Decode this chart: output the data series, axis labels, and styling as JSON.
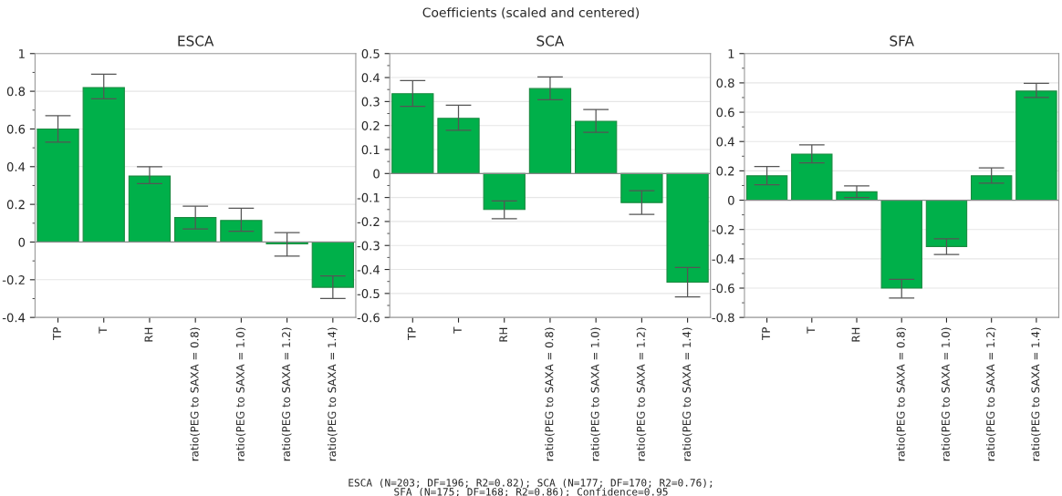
{
  "chart_data": [
    {
      "type": "bar",
      "title": "ESCA",
      "annotations": [
        "Coefficients (scaled and centered)"
      ],
      "categories": [
        "TP",
        "T",
        "RH",
        "ratio(PEG to SAXA = 0.8)",
        "ratio(PEG to SAXA = 1.0)",
        "ratio(PEG to SAXA = 1.2)",
        "ratio(PEG to SAXA = 1.4)"
      ],
      "values": [
        0.6,
        0.82,
        0.35,
        0.13,
        0.115,
        -0.01,
        -0.24
      ],
      "errors": [
        [
          0.53,
          0.67
        ],
        [
          0.76,
          0.89
        ],
        [
          0.31,
          0.4
        ],
        [
          0.07,
          0.19
        ],
        [
          0.057,
          0.18
        ],
        [
          -0.075,
          0.05
        ],
        [
          -0.3,
          -0.18
        ]
      ],
      "color": "#00b04a",
      "ylim": [
        -0.4,
        1
      ],
      "yticks": [
        -0.4,
        -0.2,
        0,
        0.2,
        0.4,
        0.6,
        0.8,
        1
      ],
      "grid": "y"
    },
    {
      "type": "bar",
      "title": "SCA",
      "categories": [
        "TP",
        "T",
        "RH",
        "ratio(PEG to SAXA = 0.8)",
        "ratio(PEG to SAXA = 1.0)",
        "ratio(PEG to SAXA = 1.2)",
        "ratio(PEG to SAXA = 1.4)"
      ],
      "values": [
        0.333,
        0.23,
        -0.15,
        0.354,
        0.218,
        -0.121,
        -0.453
      ],
      "errors": [
        [
          0.28,
          0.387
        ],
        [
          0.18,
          0.285
        ],
        [
          -0.188,
          -0.114
        ],
        [
          0.308,
          0.403
        ],
        [
          0.172,
          0.267
        ],
        [
          -0.17,
          -0.072
        ],
        [
          -0.514,
          -0.392
        ]
      ],
      "color": "#00b04a",
      "ylim": [
        -0.6,
        0.5
      ],
      "yticks": [
        -0.6,
        -0.5,
        -0.4,
        -0.3,
        -0.2,
        -0.1,
        0,
        0.1,
        0.2,
        0.3,
        0.4,
        0.5
      ],
      "grid": "y"
    },
    {
      "type": "bar",
      "title": "SFA",
      "annotations": [
        "ESCA (N=203; DF=196; R2=0.82); SCA (N=177; DF=170; R2=0.76);\nSFA (N=175; DF=168; R2=0.86); Confidence=0.95"
      ],
      "categories": [
        "TP",
        "T",
        "RH",
        "ratio(PEG to SAXA = 0.8)",
        "ratio(PEG to SAXA = 1.0)",
        "ratio(PEG to SAXA = 1.2)",
        "ratio(PEG to SAXA = 1.4)"
      ],
      "values": [
        0.166,
        0.314,
        0.057,
        -0.6,
        -0.316,
        0.166,
        0.744
      ],
      "errors": [
        [
          0.105,
          0.23
        ],
        [
          0.254,
          0.377
        ],
        [
          0.018,
          0.097
        ],
        [
          -0.667,
          -0.54
        ],
        [
          -0.37,
          -0.264
        ],
        [
          0.116,
          0.22
        ],
        [
          0.7,
          0.797
        ]
      ],
      "color": "#00b04a",
      "ylim": [
        -0.8,
        1
      ],
      "yticks": [
        -0.8,
        -0.6,
        -0.4,
        -0.2,
        0,
        0.2,
        0.4,
        0.6,
        0.8,
        1
      ],
      "grid": "y"
    }
  ]
}
